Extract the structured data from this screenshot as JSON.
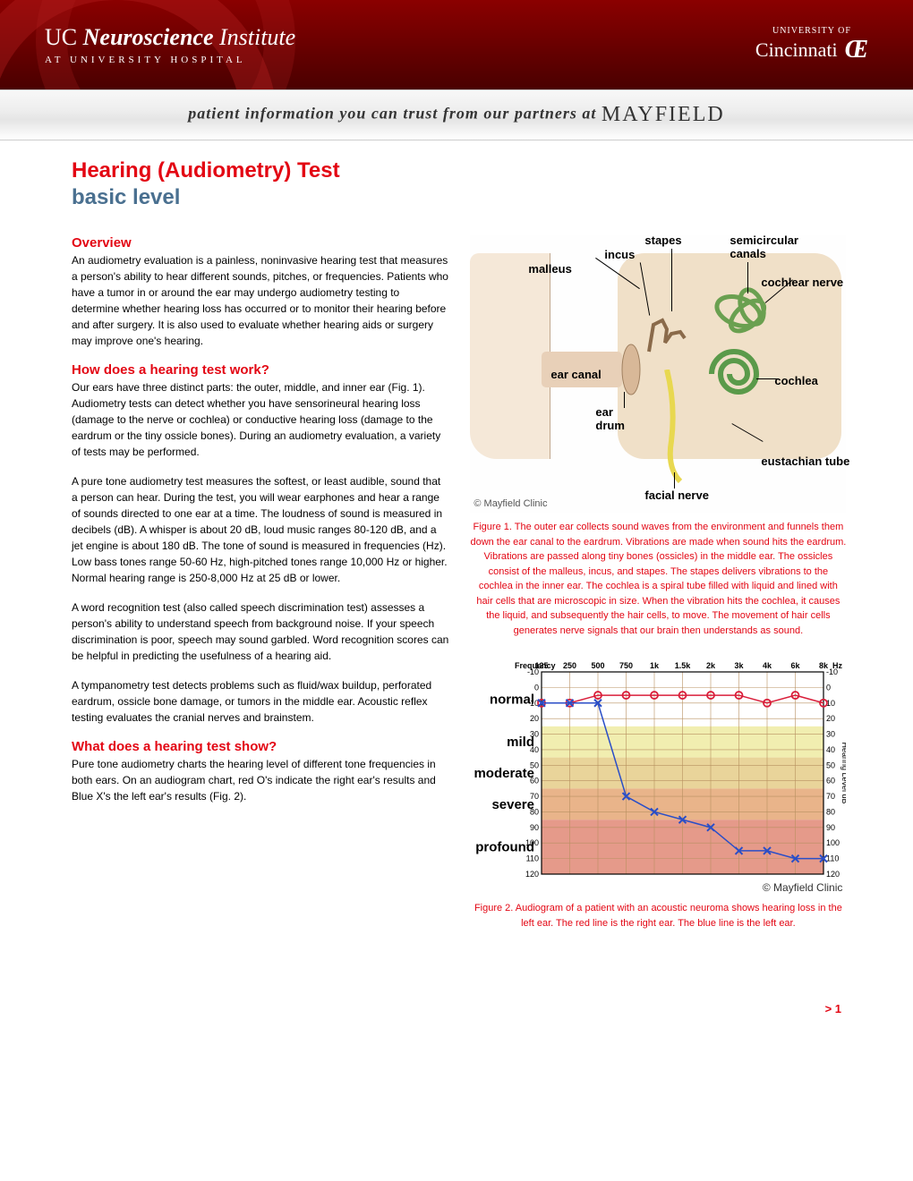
{
  "header": {
    "left_logo_uc": "UC",
    "left_logo_bold": "Neuroscience",
    "left_logo_inst": "Institute",
    "left_logo_sub": "AT UNIVERSITY HOSPITAL",
    "right_univ_of": "UNIVERSITY OF",
    "right_name": "Cincinnati",
    "right_icon": "Œ"
  },
  "tagline": {
    "text": "patient information you can trust from our partners at ",
    "brand": "MAYFIELD"
  },
  "title": "Hearing (Audiometry) Test",
  "subtitle": "basic level",
  "sections": {
    "overview": {
      "heading": "Overview",
      "p1": "An audiometry evaluation is a painless, noninvasive hearing test that measures a person's ability to hear different sounds, pitches, or frequencies. Patients who have a tumor in or around the ear may undergo audiometry testing to determine whether hearing loss has occurred or to monitor their hearing before and after surgery. It is also used to evaluate whether hearing aids or surgery may improve one's hearing."
    },
    "how_work": {
      "heading": "How does a hearing test work?",
      "p1": "Our ears have three distinct parts: the outer, middle, and inner ear (Fig. 1). Audiometry tests can detect whether you have sensorineural hearing loss (damage to the nerve or cochlea) or conductive hearing loss (damage to the eardrum or the tiny ossicle bones). During an audiometry evaluation, a variety of tests may be performed.",
      "p2": "A pure tone audiometry test measures the softest, or least audible, sound that a person can hear. During the test, you will wear earphones and hear a range of sounds directed to one ear at a time. The loudness of sound is measured in decibels (dB). A whisper is about 20 dB, loud music ranges 80-120 dB, and a jet engine is about 180 dB. The tone of sound is measured in frequencies (Hz). Low bass tones range 50-60 Hz, high-pitched tones range 10,000 Hz or higher. Normal hearing range is 250-8,000 Hz at 25 dB or lower.",
      "p3": "A word recognition test (also called speech discrimination test) assesses a person's ability to understand speech from background noise. If your speech discrimination is poor, speech may sound garbled. Word recognition scores can be helpful in predicting the usefulness of a hearing aid.",
      "p4": "A tympanometry test detects problems such as fluid/wax buildup, perforated eardrum, ossicle bone damage, or tumors in the middle ear. Acoustic reflex testing evaluates the cranial nerves and brainstem."
    },
    "what_show": {
      "heading": "What does a hearing test show?",
      "p1": "Pure tone audiometry charts the hearing level of different tone frequencies in both ears. On an audiogram chart, red O's indicate the right ear's results and Blue X's the left ear's results (Fig. 2)."
    }
  },
  "figure1": {
    "labels": {
      "stapes": "stapes",
      "incus": "incus",
      "malleus": "malleus",
      "semicircular": "semicircular canals",
      "cochlear_nerve": "cochlear nerve",
      "cochlea": "cochlea",
      "eustachian": "eustachian tube",
      "ear_canal": "ear canal",
      "ear_drum": "ear drum",
      "facial_nerve": "facial nerve"
    },
    "copyright": "© Mayfield Clinic",
    "caption": "Figure 1. The outer ear collects sound waves from the environment and funnels them down the ear canal to the eardrum. Vibrations are made when sound hits the eardrum. Vibrations are passed along tiny bones (ossicles) in the middle ear. The ossicles consist of the malleus, incus, and stapes. The stapes delivers vibrations to the cochlea in the inner ear. The cochlea is a spiral tube filled with liquid and lined with hair cells that are microscopic in size. When the vibration hits the cochlea, it causes the liquid, and subsequently the hair cells, to move. The movement of hair cells generates nerve signals that our brain then understands as sound."
  },
  "figure2": {
    "caption": "Figure 2. Audiogram of a patient with an acoustic neuroma shows hearing loss in the left ear. The red line is the right ear. The blue line is the left ear.",
    "copyright": "© Mayfield Clinic",
    "freq_label": "Frequency",
    "freq_ticks": [
      "125",
      "250",
      "500",
      "750",
      "1k",
      "1.5k",
      "2k",
      "3k",
      "4k",
      "6k",
      "8k"
    ],
    "freq_unit": "Hz",
    "db_ticks": [
      -10,
      0,
      10,
      20,
      30,
      40,
      50,
      60,
      70,
      80,
      90,
      100,
      110,
      120
    ],
    "y_label": "Hearing Level dB",
    "bands": [
      {
        "name": "normal",
        "from": -10,
        "to": 25,
        "color": "#ffffff"
      },
      {
        "name": "mild",
        "from": 25,
        "to": 45,
        "color": "#f1eeb0"
      },
      {
        "name": "moderate",
        "from": 45,
        "to": 65,
        "color": "#e9d49a"
      },
      {
        "name": "severe",
        "from": 65,
        "to": 85,
        "color": "#e9b48a"
      },
      {
        "name": "profound",
        "from": 85,
        "to": 120,
        "color": "#e59a8a"
      }
    ],
    "right_ear": {
      "color": "#d91e3a",
      "marker": "circle",
      "points": [
        {
          "f": "125",
          "db": 10
        },
        {
          "f": "250",
          "db": 10
        },
        {
          "f": "500",
          "db": 5
        },
        {
          "f": "750",
          "db": 5
        },
        {
          "f": "1k",
          "db": 5
        },
        {
          "f": "1.5k",
          "db": 5
        },
        {
          "f": "2k",
          "db": 5
        },
        {
          "f": "3k",
          "db": 5
        },
        {
          "f": "4k",
          "db": 10
        },
        {
          "f": "6k",
          "db": 5
        },
        {
          "f": "8k",
          "db": 10
        }
      ]
    },
    "left_ear": {
      "color": "#2a4ec7",
      "marker": "x",
      "points": [
        {
          "f": "125",
          "db": 10
        },
        {
          "f": "250",
          "db": 10
        },
        {
          "f": "500",
          "db": 10
        },
        {
          "f": "750",
          "db": 70
        },
        {
          "f": "1k",
          "db": 80
        },
        {
          "f": "1.5k",
          "db": 85
        },
        {
          "f": "2k",
          "db": 90
        },
        {
          "f": "3k",
          "db": 105
        },
        {
          "f": "4k",
          "db": 105
        },
        {
          "f": "6k",
          "db": 110
        },
        {
          "f": "8k",
          "db": 110
        }
      ]
    },
    "grid_color": "#b89060",
    "axis_color": "#000000",
    "label_fontsize": 11
  },
  "page_number": "> 1"
}
